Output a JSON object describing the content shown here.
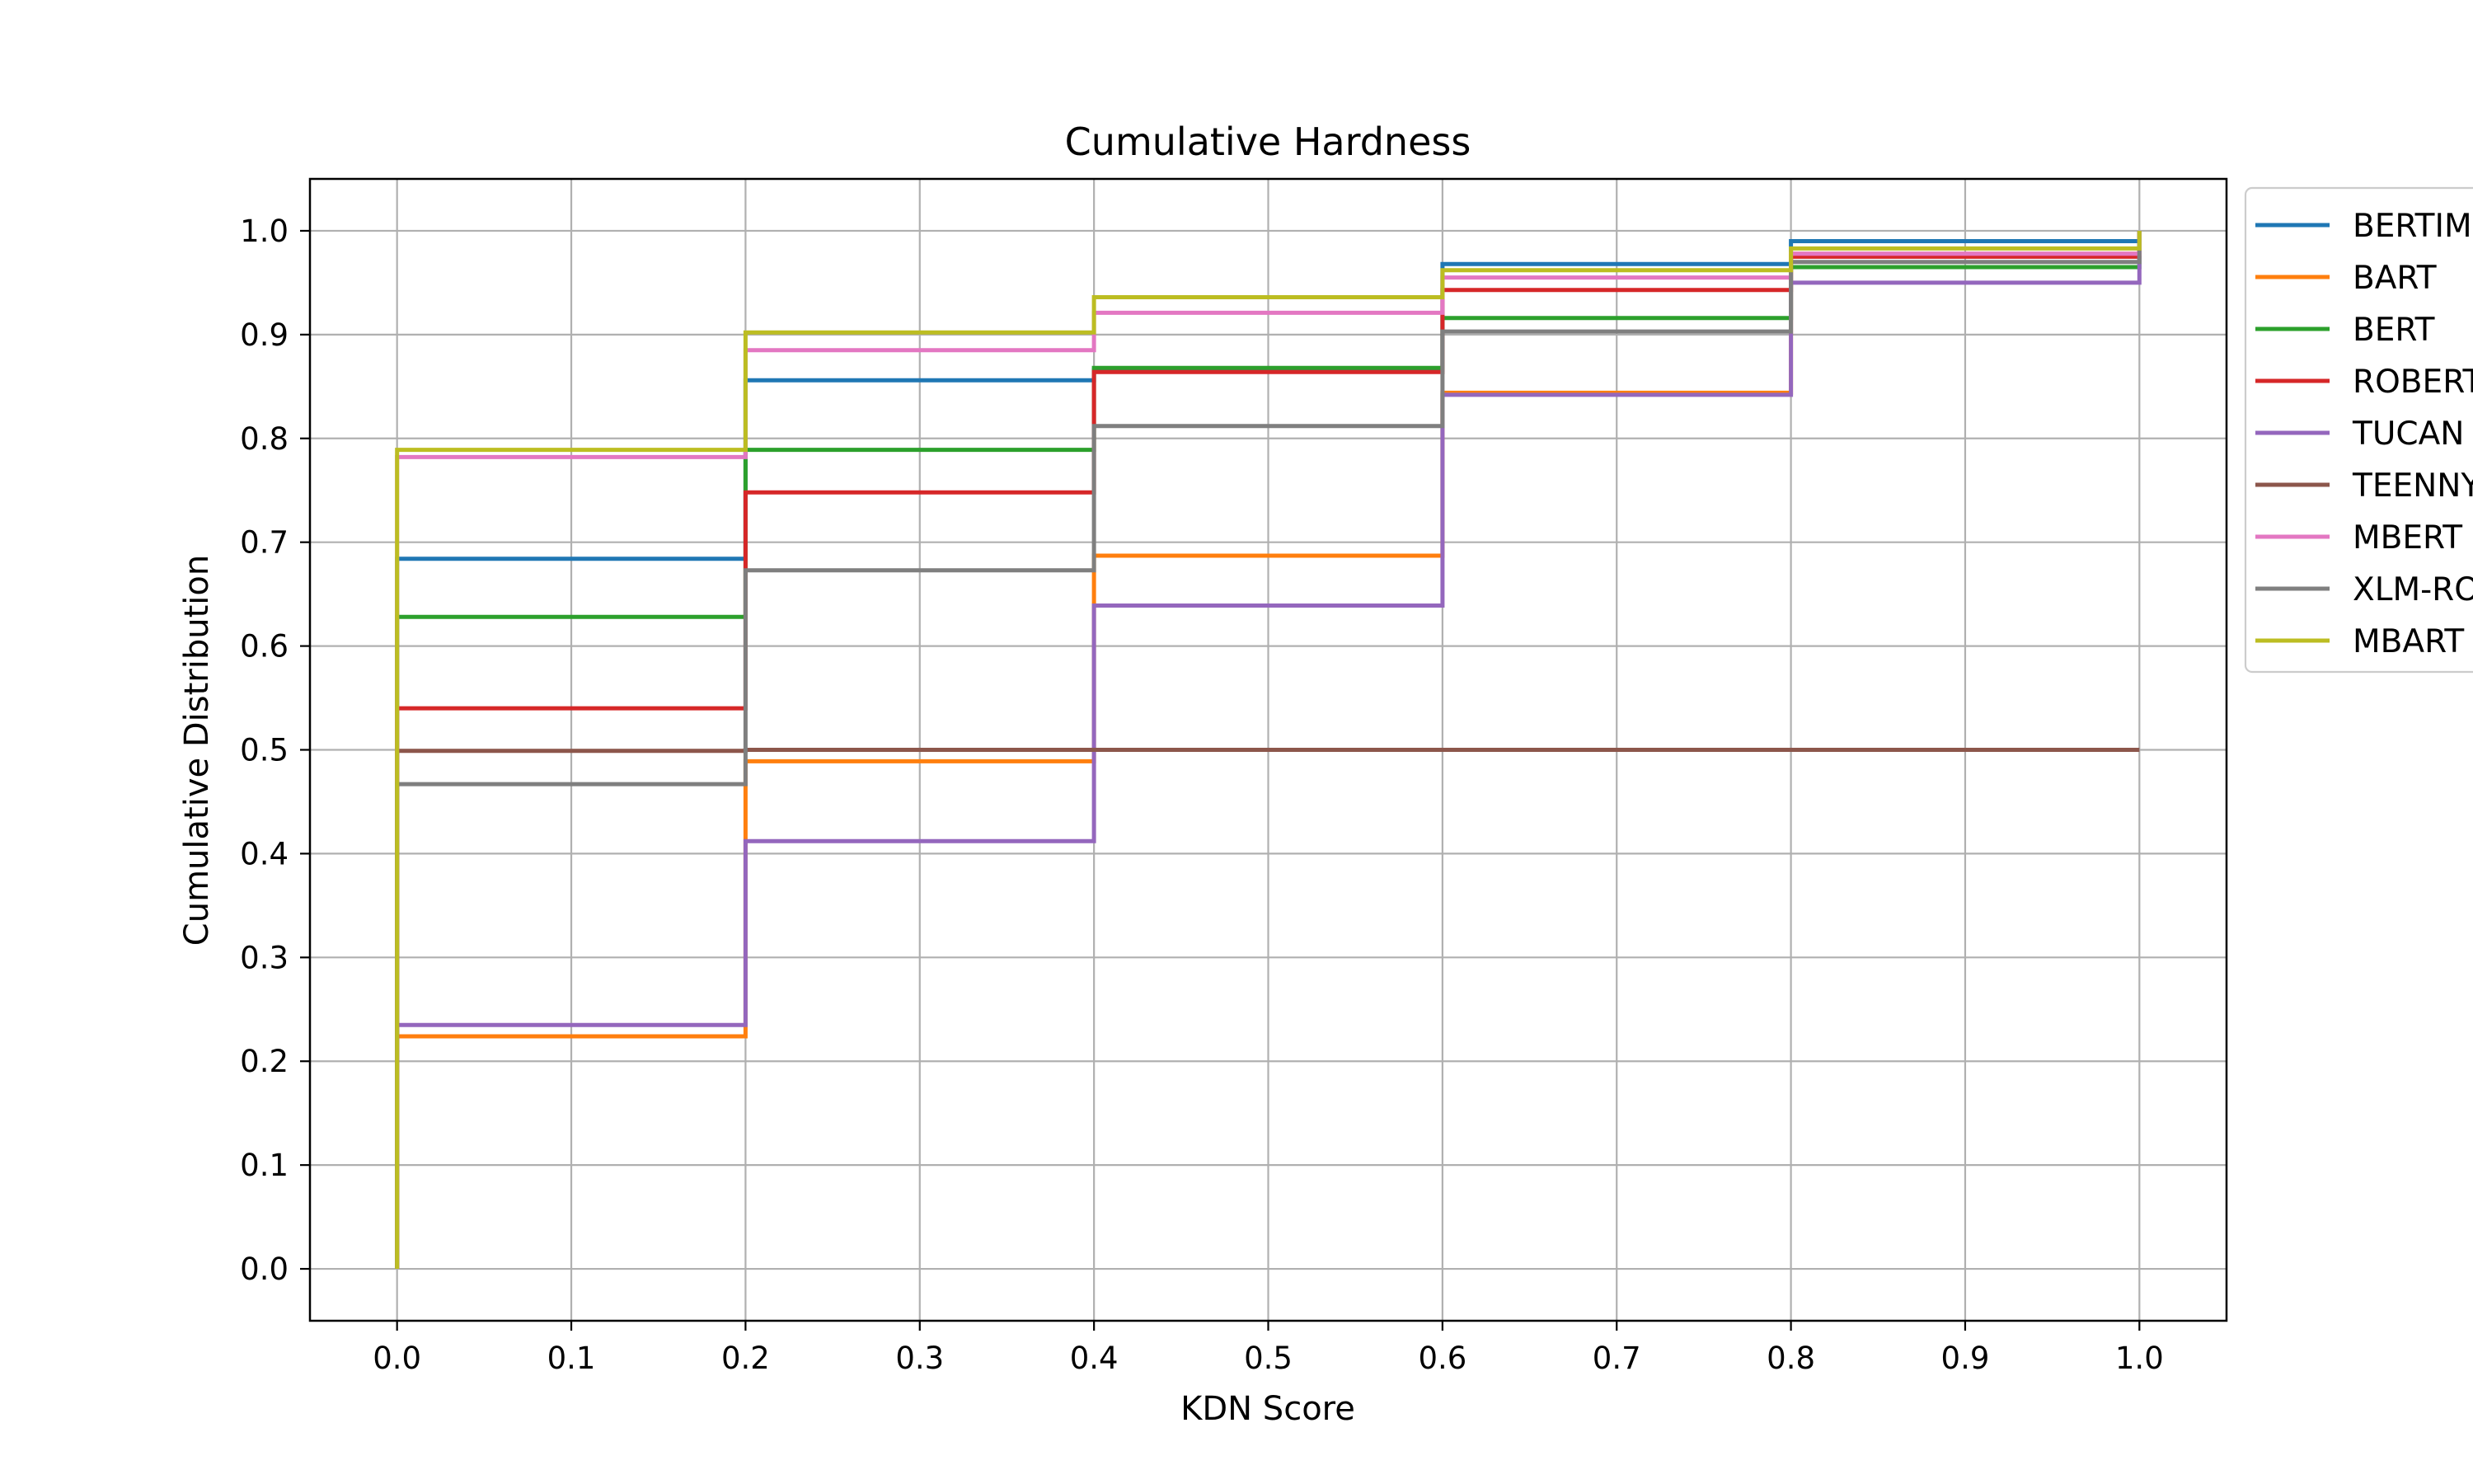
{
  "chart_data": {
    "type": "line",
    "title": "Cumulative Hardness",
    "xlabel": "KDN Score",
    "ylabel": "Cumulative Distribution",
    "xlim": [
      -0.05,
      1.05
    ],
    "ylim": [
      -0.05,
      1.05
    ],
    "xticks": [
      "0.0",
      "0.1",
      "0.2",
      "0.3",
      "0.4",
      "0.5",
      "0.6",
      "0.7",
      "0.8",
      "0.9",
      "1.0"
    ],
    "yticks": [
      "0.0",
      "0.1",
      "0.2",
      "0.3",
      "0.4",
      "0.5",
      "0.6",
      "0.7",
      "0.8",
      "0.9",
      "1.0"
    ],
    "grid": true,
    "legend_position": "upper right, outside plot area",
    "step": true,
    "x": [
      0.0,
      0.2,
      0.4,
      0.6,
      0.8,
      1.0
    ],
    "series": [
      {
        "name": "BERTIM",
        "color": "#1f77b4",
        "values": [
          0.684,
          0.856,
          0.866,
          0.968,
          0.99,
          1.0
        ]
      },
      {
        "name": "BART",
        "color": "#ff7f0e",
        "values": [
          0.224,
          0.489,
          0.687,
          0.844,
          0.978,
          1.0
        ]
      },
      {
        "name": "BERT",
        "color": "#2ca02c",
        "values": [
          0.628,
          0.789,
          0.868,
          0.916,
          0.965,
          1.0
        ]
      },
      {
        "name": "ROBERT",
        "color": "#d62728",
        "values": [
          0.54,
          0.748,
          0.864,
          0.943,
          0.975,
          1.0
        ]
      },
      {
        "name": "TUCAN",
        "color": "#9467bd",
        "values": [
          0.235,
          0.412,
          0.639,
          0.842,
          0.95,
          1.0
        ]
      },
      {
        "name": "TEENNY",
        "color": "#8c564b",
        "values": [
          0.499,
          0.5,
          0.5,
          0.5,
          0.5,
          0.5
        ]
      },
      {
        "name": "MBERT",
        "color": "#e377c2",
        "values": [
          0.782,
          0.885,
          0.921,
          0.955,
          0.978,
          1.0
        ]
      },
      {
        "name": "XLM-RO",
        "color": "#7f7f7f",
        "values": [
          0.467,
          0.673,
          0.812,
          0.903,
          0.97,
          1.0
        ]
      },
      {
        "name": "MBART",
        "color": "#bcbd22",
        "values": [
          0.789,
          0.902,
          0.936,
          0.962,
          0.983,
          1.0
        ]
      }
    ]
  }
}
